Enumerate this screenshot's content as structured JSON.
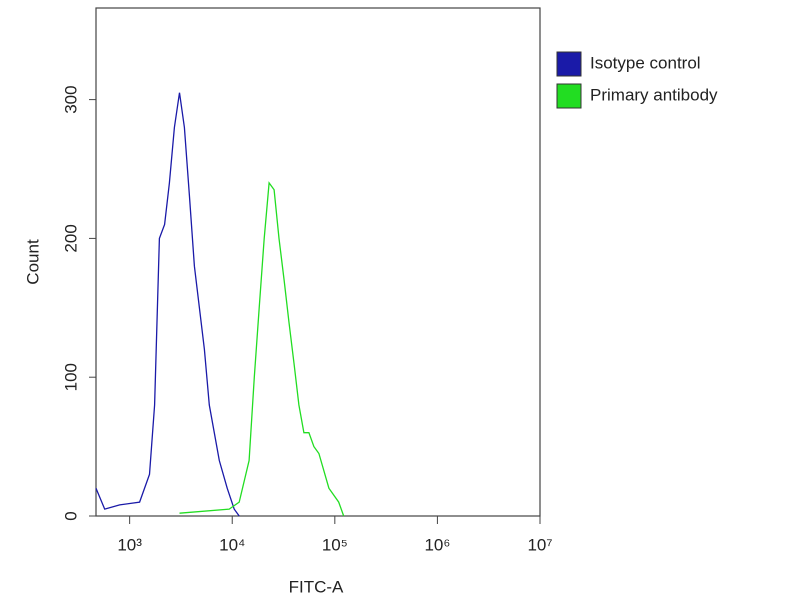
{
  "chart_data": {
    "type": "line",
    "x_label": "FITC-A",
    "y_label": "Count",
    "xscale": "log",
    "xlim": [
      470,
      10000000
    ],
    "xticks": [
      {
        "value": 1000,
        "label": "10³"
      },
      {
        "value": 10000,
        "label": "10⁴"
      },
      {
        "value": 100000,
        "label": "10⁵"
      },
      {
        "value": 1000000,
        "label": "10⁶"
      },
      {
        "value": 10000000,
        "label": "10⁷"
      }
    ],
    "ylim": [
      0,
      366
    ],
    "yticks": [
      0,
      100,
      200,
      300
    ],
    "legend": "right",
    "series": [
      {
        "name": "Isotype control",
        "color": "#1a1aa8",
        "x": [
          470,
          571,
          800,
          1250,
          1560,
          1750,
          1950,
          2190,
          2440,
          2730,
          3060,
          3420,
          3830,
          4280,
          4790,
          5350,
          5980,
          6690,
          7480,
          8940,
          10450,
          11700
        ],
        "values": [
          20,
          5,
          8,
          10,
          30,
          80,
          200,
          210,
          240,
          280,
          305,
          280,
          230,
          180,
          150,
          120,
          80,
          60,
          40,
          20,
          5,
          0
        ]
      },
      {
        "name": "Primary antibody",
        "color": "#22dd22",
        "x": [
          3060,
          9350,
          11700,
          14600,
          16400,
          18300,
          20500,
          22900,
          25600,
          28600,
          32000,
          35700,
          40000,
          44700,
          50000,
          55900,
          62500,
          70000,
          87500,
          109000,
          122000
        ],
        "values": [
          2,
          5,
          10,
          40,
          100,
          150,
          200,
          240,
          235,
          200,
          170,
          140,
          110,
          80,
          60,
          60,
          50,
          45,
          20,
          10,
          0
        ]
      }
    ]
  }
}
